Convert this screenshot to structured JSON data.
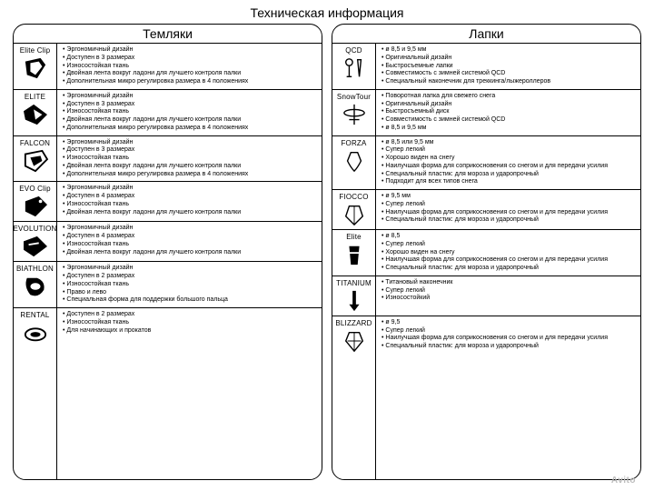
{
  "page_title": "Техническая информация",
  "watermark": "Avito",
  "columns": {
    "left": {
      "title": "Темляки",
      "rows": [
        {
          "name": "Elite Clip",
          "glyph": "strap1",
          "features": [
            "Эргономичный дизайн",
            "Доступен в 3 размерах",
            "Износостойкая ткань",
            "Двойная лента вокруг ладони для лучшего контроля палки",
            "Дополнительная микро регулировка размера в 4 положениях"
          ]
        },
        {
          "name": "ELITE",
          "glyph": "strap2",
          "features": [
            "Эргономичный дизайн",
            "Доступен в 3 размерах",
            "Износостойкая ткань",
            "Двойная лента вокруг ладони для лучшего контроля палки",
            "Дополнительная микро регулировка размера в 4 положениях"
          ]
        },
        {
          "name": "FALCON",
          "glyph": "strap3",
          "features": [
            "Эргономичный дизайн",
            "Доступен в 3 размерах",
            "Износостойкая ткань",
            "Двойная лента вокруг ладони для лучшего контроля палки",
            "Дополнительная микро регулировка размера в 4 положениях"
          ]
        },
        {
          "name": "EVO Clip",
          "glyph": "strap4",
          "features": [
            "Эргономичный дизайн",
            "Доступен в 4 размерах",
            "Износостойкая ткань",
            "Двойная лента вокруг ладони для лучшего контроля палки"
          ]
        },
        {
          "name": "EVOLUTION",
          "glyph": "strap5",
          "features": [
            "Эргономичный дизайн",
            "Доступен в 4 размерах",
            "Износостойкая ткань",
            "Двойная лента вокруг ладони для лучшего контроля палки"
          ]
        },
        {
          "name": "BIATHLON",
          "glyph": "strap6",
          "features": [
            "Эргономичный дизайн",
            "Доступен в 2 размерах",
            "Износостойкая ткань",
            "Право и лево",
            "Специальная форма для поддержки большого пальца"
          ]
        },
        {
          "name": "RENTAL",
          "glyph": "strap7",
          "features": [
            "Доступен в 2 размерах",
            "Износостойкая ткань",
            "Для начинающих и прокатов"
          ]
        }
      ]
    },
    "right": {
      "title": "Лапки",
      "rows": [
        {
          "name": "QCD",
          "glyph": "basket-qcd",
          "features": [
            "ø 8,5 и 9,5 мм",
            "Оригинальный дизайн",
            "Быстросъемные лапки",
            "Совместимость с зимней системой QCD",
            "Специальный наконечник для треккинга/лыжероллеров"
          ]
        },
        {
          "name": "SnowTour",
          "glyph": "basket-snow",
          "features": [
            "Поворотная лапка для свежего снега",
            "Оригинальный дизайн",
            "Быстросъемный диск",
            "Совместимость с зимней системой QCD",
            "ø 8,5 и 9,5 мм"
          ]
        },
        {
          "name": "FORZA",
          "glyph": "basket-forza",
          "features": [
            "ø 8,5 или 9,5 мм",
            "Супер легкий",
            "Хорошо виден на снегу",
            "Наилучшая форма для соприкосновения со снегом и для передачи усилия",
            "Специальный пластик: для мороза и ударопрочный",
            "Подходит для всех типов снега"
          ]
        },
        {
          "name": "FIOCCO",
          "glyph": "basket-fiocco",
          "features": [
            "ø 9,5 мм",
            "Супер легкий",
            "Наилучшая форма для соприкосновения со снегом и для передачи усилия",
            "Специальный пластик: для мороза и ударопрочный"
          ]
        },
        {
          "name": "Elite",
          "glyph": "basket-elite",
          "features": [
            "ø 8,5",
            "Супер легкий",
            "Хорошо виден на снегу",
            "Наилучшая форма для соприкосновения со снегом и для передачи усилия",
            "Специальный пластик: для мороза и ударопрочный"
          ]
        },
        {
          "name": "TITANIUM",
          "glyph": "basket-titanium",
          "features": [
            "Титановый наконечник",
            "Супер легкий",
            "Износостойкий"
          ]
        },
        {
          "name": "BLIZZARD",
          "glyph": "basket-blizzard",
          "features": [
            "ø 9,5",
            "Супер легкий",
            "Наилучшая форма для соприкосновения со снегом и для передачи усилия",
            "Специальный пластик: для мороза и ударопрочный"
          ]
        }
      ]
    }
  }
}
